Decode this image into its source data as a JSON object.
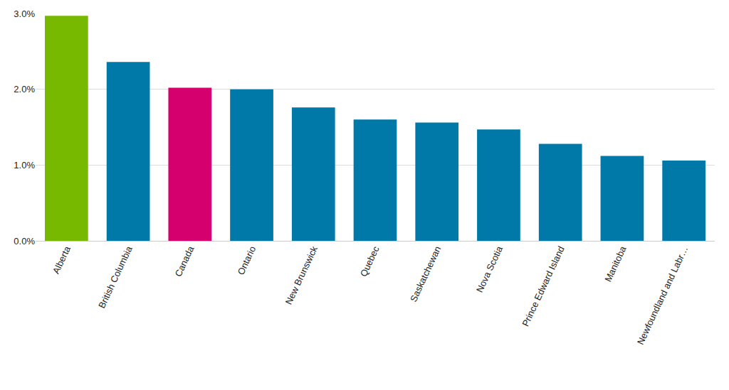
{
  "chart_data": {
    "type": "bar",
    "categories": [
      "Alberta",
      "British Columbia",
      "Canada",
      "Ontario",
      "New Brunswick",
      "Quebec",
      "Saskatchewan",
      "Nova Scotia",
      "Prince Edward Island",
      "Manitoba",
      "Newfoundland and Labr…"
    ],
    "values": [
      2.97,
      2.36,
      2.02,
      2.0,
      1.76,
      1.6,
      1.56,
      1.47,
      1.28,
      1.12,
      1.06
    ],
    "colors": [
      "#76b900",
      "#0079a8",
      "#d5006d",
      "#0079a8",
      "#0079a8",
      "#0079a8",
      "#0079a8",
      "#0079a8",
      "#0079a8",
      "#0079a8",
      "#0079a8"
    ],
    "ylim": [
      0,
      3
    ],
    "yticks": [
      {
        "value": 0,
        "label": "0.0%"
      },
      {
        "value": 1,
        "label": "1.0%"
      },
      {
        "value": 2,
        "label": "2.0%"
      },
      {
        "value": 3,
        "label": "3.0%"
      }
    ],
    "grid": true
  }
}
